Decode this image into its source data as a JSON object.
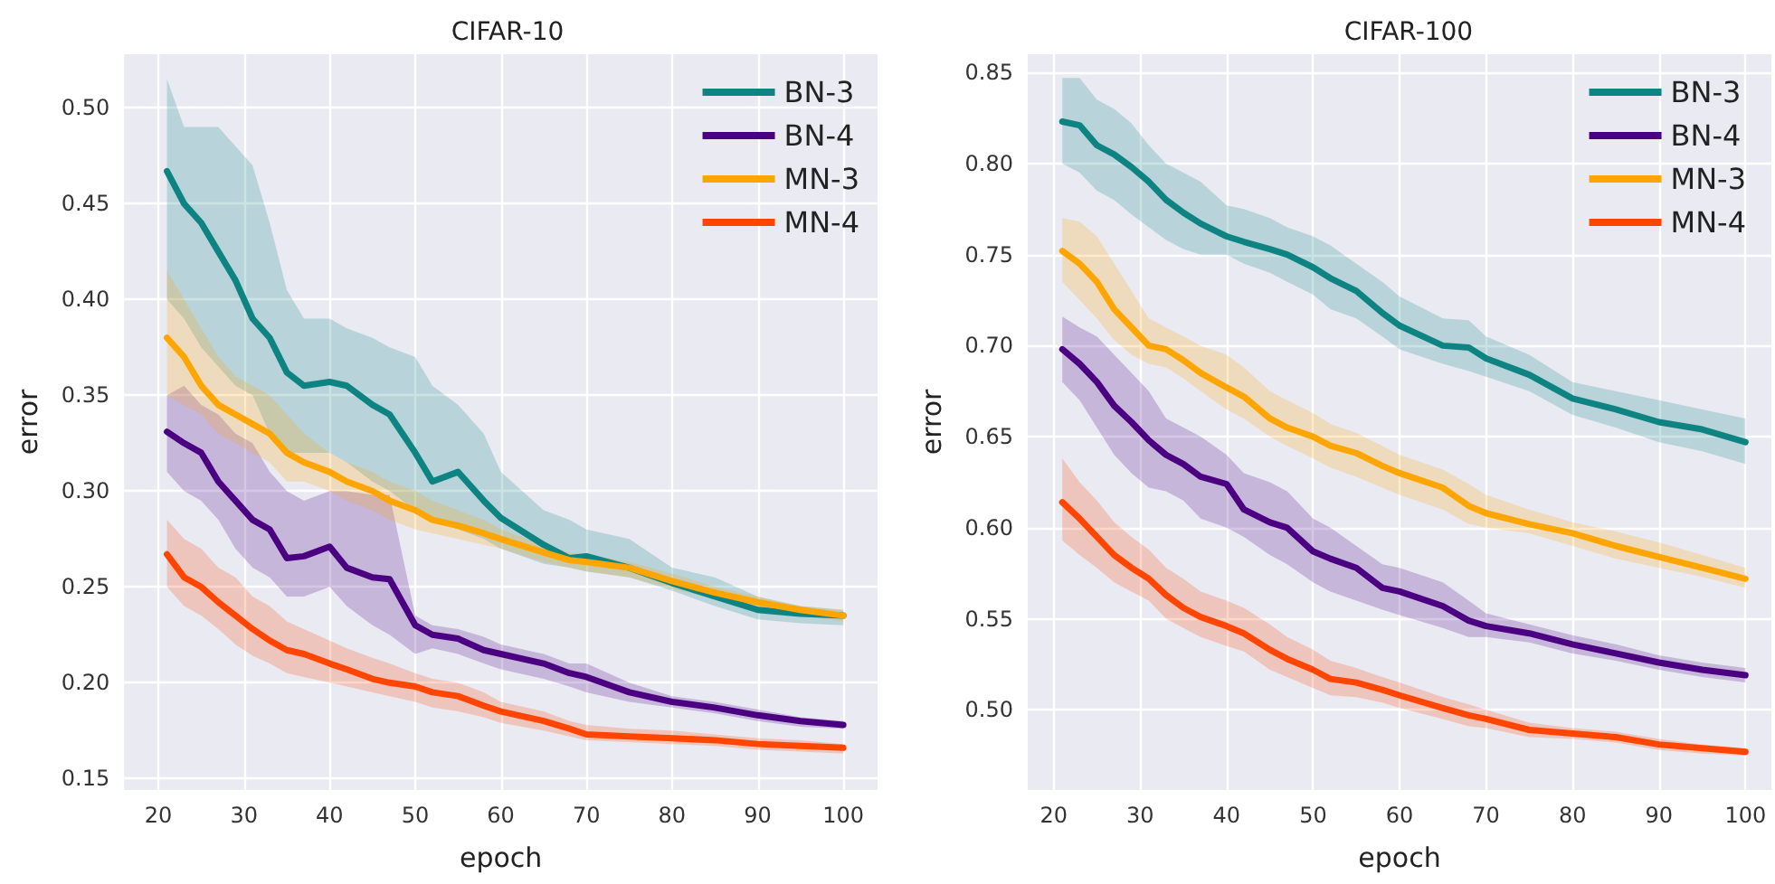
{
  "chart_data": [
    {
      "type": "line",
      "title": "CIFAR-10",
      "xlabel": "epoch",
      "ylabel": "error",
      "legend": "top right",
      "grid": true,
      "marker": "none",
      "line_style": "solid",
      "xlim": [
        16,
        104
      ],
      "xticks": [
        20,
        30,
        40,
        50,
        60,
        70,
        80,
        90,
        100
      ],
      "ylim": [
        0.144,
        0.528
      ],
      "yticks": [
        {
          "value": 0.15,
          "label": "0.15"
        },
        {
          "value": 0.2,
          "label": "0.20"
        },
        {
          "value": 0.25,
          "label": "0.25"
        },
        {
          "value": 0.3,
          "label": "0.30"
        },
        {
          "value": 0.35,
          "label": "0.35"
        },
        {
          "value": 0.4,
          "label": "0.40"
        },
        {
          "value": 0.45,
          "label": "0.45"
        },
        {
          "value": 0.5,
          "label": "0.50"
        }
      ],
      "x": [
        21,
        23,
        25,
        27,
        29,
        31,
        33,
        35,
        37,
        40,
        42,
        45,
        47,
        50,
        52,
        55,
        58,
        60,
        65,
        68,
        70,
        75,
        80,
        85,
        90,
        95,
        100
      ],
      "series": [
        {
          "name": "BN-3",
          "color": "#0e8482",
          "values": [
            0.467,
            0.45,
            0.44,
            0.425,
            0.41,
            0.39,
            0.38,
            0.362,
            0.355,
            0.357,
            0.355,
            0.345,
            0.34,
            0.32,
            0.305,
            0.31,
            0.295,
            0.286,
            0.272,
            0.265,
            0.266,
            0.26,
            0.252,
            0.245,
            0.238,
            0.236,
            0.235
          ],
          "upper": [
            0.515,
            0.49,
            0.49,
            0.49,
            0.48,
            0.47,
            0.44,
            0.405,
            0.39,
            0.39,
            0.385,
            0.38,
            0.375,
            0.37,
            0.355,
            0.345,
            0.33,
            0.31,
            0.29,
            0.285,
            0.28,
            0.275,
            0.26,
            0.255,
            0.245,
            0.24,
            0.238
          ],
          "lower": [
            0.4,
            0.39,
            0.375,
            0.365,
            0.355,
            0.35,
            0.33,
            0.32,
            0.32,
            0.32,
            0.315,
            0.305,
            0.3,
            0.29,
            0.285,
            0.28,
            0.275,
            0.27,
            0.262,
            0.26,
            0.258,
            0.255,
            0.248,
            0.24,
            0.233,
            0.231,
            0.23
          ]
        },
        {
          "name": "BN-4",
          "color": "#4b0082",
          "values": [
            0.331,
            0.325,
            0.32,
            0.305,
            0.295,
            0.285,
            0.28,
            0.265,
            0.266,
            0.271,
            0.26,
            0.255,
            0.254,
            0.23,
            0.225,
            0.223,
            0.217,
            0.215,
            0.21,
            0.205,
            0.203,
            0.195,
            0.19,
            0.187,
            0.183,
            0.18,
            0.178
          ],
          "upper": [
            0.35,
            0.355,
            0.345,
            0.34,
            0.33,
            0.325,
            0.31,
            0.3,
            0.295,
            0.3,
            0.3,
            0.298,
            0.298,
            0.235,
            0.23,
            0.228,
            0.224,
            0.22,
            0.215,
            0.21,
            0.21,
            0.2,
            0.193,
            0.19,
            0.186,
            0.182,
            0.18
          ],
          "lower": [
            0.31,
            0.3,
            0.295,
            0.285,
            0.27,
            0.26,
            0.255,
            0.245,
            0.245,
            0.25,
            0.24,
            0.23,
            0.225,
            0.215,
            0.218,
            0.215,
            0.21,
            0.207,
            0.202,
            0.198,
            0.195,
            0.19,
            0.187,
            0.184,
            0.18,
            0.177,
            0.176
          ]
        },
        {
          "name": "MN-3",
          "color": "#ffa500",
          "values": [
            0.38,
            0.37,
            0.355,
            0.345,
            0.34,
            0.335,
            0.33,
            0.32,
            0.315,
            0.31,
            0.305,
            0.3,
            0.295,
            0.29,
            0.285,
            0.282,
            0.278,
            0.275,
            0.268,
            0.264,
            0.263,
            0.26,
            0.253,
            0.247,
            0.242,
            0.238,
            0.235
          ],
          "upper": [
            0.415,
            0.4,
            0.385,
            0.37,
            0.36,
            0.355,
            0.35,
            0.34,
            0.33,
            0.32,
            0.315,
            0.31,
            0.305,
            0.3,
            0.295,
            0.29,
            0.285,
            0.28,
            0.272,
            0.268,
            0.267,
            0.263,
            0.257,
            0.25,
            0.245,
            0.24,
            0.238
          ],
          "lower": [
            0.35,
            0.345,
            0.34,
            0.33,
            0.325,
            0.32,
            0.315,
            0.305,
            0.305,
            0.3,
            0.295,
            0.29,
            0.285,
            0.28,
            0.278,
            0.275,
            0.272,
            0.27,
            0.263,
            0.26,
            0.258,
            0.255,
            0.249,
            0.244,
            0.239,
            0.235,
            0.232
          ]
        },
        {
          "name": "MN-4",
          "color": "#ff4500",
          "values": [
            0.267,
            0.255,
            0.25,
            0.242,
            0.235,
            0.228,
            0.222,
            0.217,
            0.215,
            0.21,
            0.207,
            0.202,
            0.2,
            0.198,
            0.195,
            0.193,
            0.188,
            0.185,
            0.18,
            0.176,
            0.173,
            0.172,
            0.171,
            0.17,
            0.168,
            0.167,
            0.166
          ],
          "upper": [
            0.285,
            0.275,
            0.27,
            0.26,
            0.255,
            0.245,
            0.24,
            0.232,
            0.228,
            0.222,
            0.218,
            0.213,
            0.21,
            0.205,
            0.202,
            0.2,
            0.195,
            0.19,
            0.185,
            0.18,
            0.178,
            0.176,
            0.175,
            0.173,
            0.171,
            0.17,
            0.168
          ],
          "lower": [
            0.25,
            0.24,
            0.235,
            0.228,
            0.22,
            0.214,
            0.21,
            0.205,
            0.203,
            0.2,
            0.198,
            0.195,
            0.193,
            0.19,
            0.187,
            0.185,
            0.182,
            0.179,
            0.175,
            0.172,
            0.17,
            0.169,
            0.168,
            0.167,
            0.165,
            0.164,
            0.163
          ]
        }
      ]
    },
    {
      "type": "line",
      "title": "CIFAR-100",
      "xlabel": "epoch",
      "ylabel": "error",
      "legend": "top right",
      "grid": true,
      "marker": "none",
      "line_style": "solid",
      "xlim": [
        17,
        103
      ],
      "xticks": [
        20,
        30,
        40,
        50,
        60,
        70,
        80,
        90,
        100
      ],
      "ylim": [
        0.456,
        0.86
      ],
      "yticks": [
        {
          "value": 0.5,
          "label": "0.50"
        },
        {
          "value": 0.55,
          "label": "0.55"
        },
        {
          "value": 0.6,
          "label": "0.60"
        },
        {
          "value": 0.65,
          "label": "0.65"
        },
        {
          "value": 0.7,
          "label": "0.70"
        },
        {
          "value": 0.75,
          "label": "0.75"
        },
        {
          "value": 0.8,
          "label": "0.80"
        },
        {
          "value": 0.85,
          "label": "0.85"
        }
      ],
      "x": [
        21,
        23,
        25,
        27,
        29,
        31,
        33,
        35,
        37,
        40,
        42,
        45,
        47,
        50,
        52,
        55,
        58,
        60,
        65,
        68,
        70,
        75,
        80,
        85,
        90,
        95,
        100
      ],
      "series": [
        {
          "name": "BN-3",
          "color": "#0e8482",
          "values": [
            0.823,
            0.821,
            0.81,
            0.805,
            0.798,
            0.79,
            0.78,
            0.773,
            0.767,
            0.76,
            0.757,
            0.753,
            0.75,
            0.743,
            0.737,
            0.73,
            0.718,
            0.711,
            0.7,
            0.699,
            0.693,
            0.684,
            0.671,
            0.665,
            0.658,
            0.654,
            0.647
          ],
          "upper": [
            0.847,
            0.847,
            0.835,
            0.83,
            0.822,
            0.81,
            0.8,
            0.795,
            0.79,
            0.777,
            0.775,
            0.77,
            0.765,
            0.76,
            0.755,
            0.745,
            0.735,
            0.727,
            0.715,
            0.714,
            0.705,
            0.695,
            0.68,
            0.675,
            0.67,
            0.665,
            0.66
          ],
          "lower": [
            0.8,
            0.795,
            0.785,
            0.78,
            0.772,
            0.765,
            0.758,
            0.753,
            0.75,
            0.75,
            0.745,
            0.74,
            0.735,
            0.728,
            0.72,
            0.715,
            0.705,
            0.698,
            0.69,
            0.686,
            0.683,
            0.675,
            0.662,
            0.655,
            0.647,
            0.642,
            0.635
          ]
        },
        {
          "name": "BN-4",
          "color": "#4b0082",
          "values": [
            0.698,
            0.69,
            0.68,
            0.667,
            0.658,
            0.648,
            0.64,
            0.635,
            0.628,
            0.624,
            0.61,
            0.603,
            0.6,
            0.587,
            0.583,
            0.578,
            0.567,
            0.565,
            0.557,
            0.549,
            0.546,
            0.542,
            0.536,
            0.531,
            0.526,
            0.522,
            0.519
          ],
          "upper": [
            0.716,
            0.71,
            0.705,
            0.695,
            0.685,
            0.675,
            0.66,
            0.655,
            0.65,
            0.64,
            0.63,
            0.625,
            0.62,
            0.605,
            0.6,
            0.59,
            0.58,
            0.578,
            0.57,
            0.56,
            0.553,
            0.547,
            0.541,
            0.536,
            0.53,
            0.526,
            0.523
          ],
          "lower": [
            0.68,
            0.67,
            0.655,
            0.64,
            0.63,
            0.622,
            0.62,
            0.615,
            0.605,
            0.6,
            0.595,
            0.585,
            0.58,
            0.57,
            0.565,
            0.56,
            0.555,
            0.552,
            0.545,
            0.54,
            0.54,
            0.537,
            0.531,
            0.527,
            0.522,
            0.518,
            0.515
          ]
        },
        {
          "name": "MN-3",
          "color": "#ffa500",
          "values": [
            0.752,
            0.745,
            0.735,
            0.72,
            0.71,
            0.7,
            0.698,
            0.692,
            0.685,
            0.677,
            0.672,
            0.66,
            0.655,
            0.65,
            0.645,
            0.641,
            0.634,
            0.63,
            0.622,
            0.612,
            0.608,
            0.602,
            0.597,
            0.59,
            0.584,
            0.578,
            0.572
          ],
          "upper": [
            0.77,
            0.768,
            0.76,
            0.745,
            0.73,
            0.715,
            0.71,
            0.705,
            0.7,
            0.695,
            0.688,
            0.675,
            0.67,
            0.663,
            0.657,
            0.652,
            0.645,
            0.64,
            0.632,
            0.624,
            0.618,
            0.61,
            0.603,
            0.598,
            0.592,
            0.585,
            0.578
          ],
          "lower": [
            0.735,
            0.725,
            0.715,
            0.703,
            0.695,
            0.69,
            0.688,
            0.682,
            0.675,
            0.665,
            0.66,
            0.65,
            0.645,
            0.638,
            0.633,
            0.628,
            0.622,
            0.618,
            0.61,
            0.602,
            0.6,
            0.597,
            0.59,
            0.583,
            0.578,
            0.573,
            0.567
          ]
        },
        {
          "name": "MN-4",
          "color": "#ff4500",
          "values": [
            0.614,
            0.605,
            0.595,
            0.585,
            0.578,
            0.572,
            0.563,
            0.556,
            0.551,
            0.546,
            0.542,
            0.533,
            0.528,
            0.522,
            0.517,
            0.515,
            0.511,
            0.508,
            0.501,
            0.497,
            0.495,
            0.489,
            0.487,
            0.485,
            0.481,
            0.479,
            0.477
          ],
          "upper": [
            0.638,
            0.625,
            0.615,
            0.603,
            0.595,
            0.588,
            0.578,
            0.572,
            0.565,
            0.56,
            0.556,
            0.547,
            0.54,
            0.533,
            0.527,
            0.523,
            0.518,
            0.515,
            0.507,
            0.503,
            0.5,
            0.493,
            0.49,
            0.488,
            0.484,
            0.481,
            0.479
          ],
          "lower": [
            0.593,
            0.585,
            0.578,
            0.57,
            0.565,
            0.56,
            0.55,
            0.545,
            0.54,
            0.535,
            0.532,
            0.522,
            0.518,
            0.512,
            0.508,
            0.507,
            0.504,
            0.501,
            0.495,
            0.491,
            0.49,
            0.485,
            0.484,
            0.482,
            0.478,
            0.476,
            0.475
          ]
        }
      ]
    }
  ]
}
